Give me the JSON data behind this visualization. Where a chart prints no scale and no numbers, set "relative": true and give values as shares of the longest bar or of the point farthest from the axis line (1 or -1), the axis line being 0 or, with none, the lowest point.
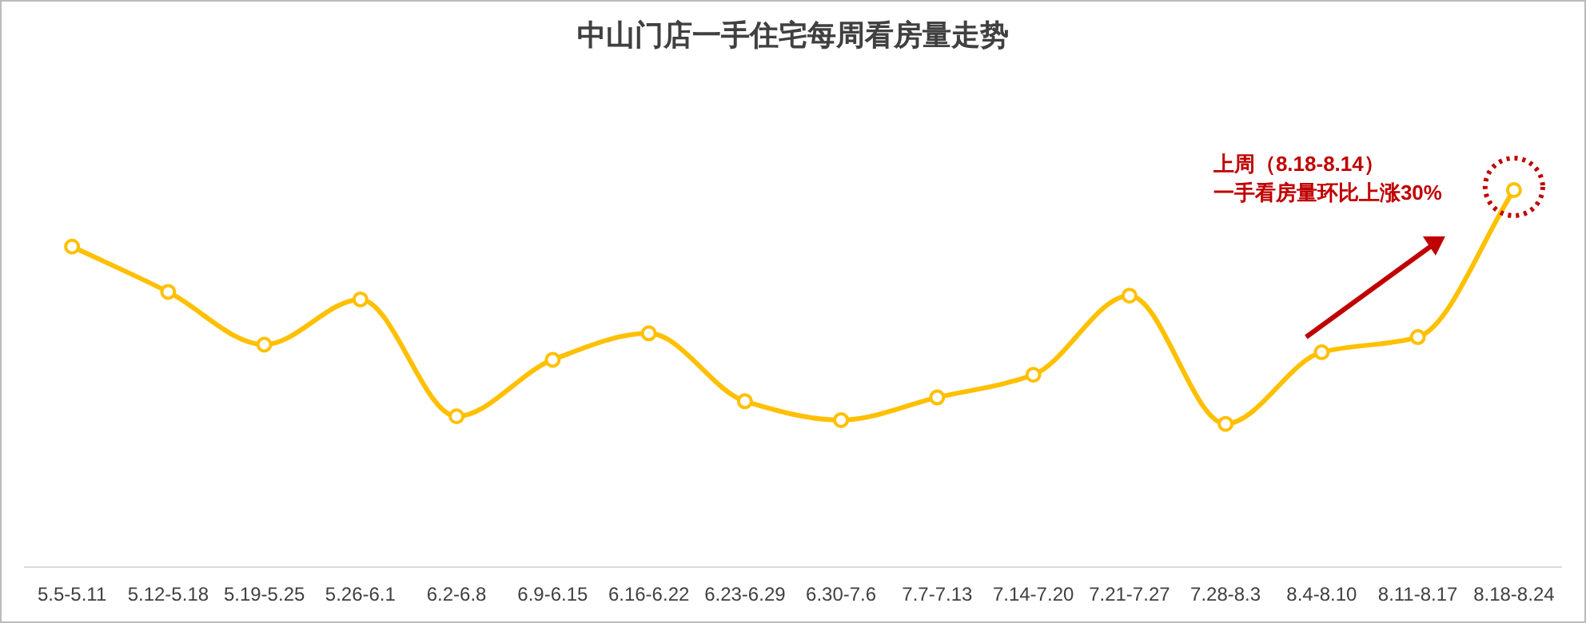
{
  "chart_data": {
    "type": "line",
    "title": "中山门店一手住宅每周看房量走势",
    "relative": true,
    "categories": [
      "5.5-5.11",
      "5.12-5.18",
      "5.19-5.25",
      "5.26-6.1",
      "6.2-6.8",
      "6.9-6.15",
      "6.16-6.22",
      "6.23-6.29",
      "6.30-7.6",
      "7.7-7.13",
      "7.14-7.20",
      "7.21-7.27",
      "7.28-8.3",
      "8.4-8.10",
      "8.11-8.17",
      "8.18-8.24"
    ],
    "series": [
      {
        "color": "#ffc000",
        "values": [
          0.85,
          0.73,
          0.59,
          0.71,
          0.4,
          0.55,
          0.62,
          0.44,
          0.39,
          0.45,
          0.51,
          0.72,
          0.38,
          0.57,
          0.61,
          1
        ]
      }
    ],
    "marker": "circle",
    "line_style": "solid",
    "annotations": [
      "上周（8.18-8.14）",
      "一手看房量环比上涨30%"
    ]
  }
}
